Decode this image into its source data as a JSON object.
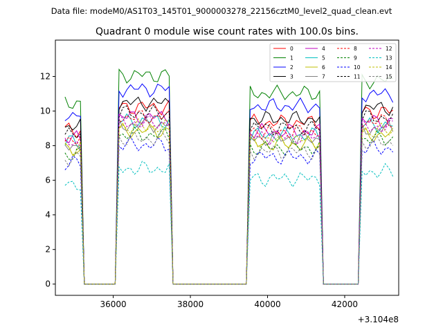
{
  "suptitle": "Data file: modeM0/AS1T03_145T01_9000003278_22156cztM0_level2_quad_clean.evt",
  "chart_data": {
    "type": "line",
    "title": "Quadrant 0 module wise count rates with 100.0s bins.",
    "xlabel": "",
    "ylabel": "",
    "x_offset_label": "+3.104e8",
    "xlim": [
      34500,
      43400
    ],
    "ylim": [
      -0.65,
      14.1
    ],
    "xticks": [
      36000,
      38000,
      40000,
      42000
    ],
    "xtick_labels": [
      "36000",
      "38000",
      "40000",
      "42000"
    ],
    "yticks": [
      0,
      2,
      4,
      6,
      8,
      10,
      12
    ],
    "ytick_labels": [
      "0",
      "2",
      "4",
      "6",
      "8",
      "10",
      "12"
    ],
    "grid": false,
    "legend_position": "top-right",
    "legend_columns": 4,
    "gti": [
      [
        34750,
        35150
      ],
      [
        36100,
        37450
      ],
      [
        39500,
        41400
      ],
      [
        42400,
        43250
      ]
    ],
    "series": [
      {
        "name": "0",
        "color": "#ff0000",
        "dash": "solid",
        "level": 8.9
      },
      {
        "name": "1",
        "color": "#008000",
        "dash": "solid",
        "level": 10.5
      },
      {
        "name": "2",
        "color": "#0000ff",
        "dash": "solid",
        "level": 9.8
      },
      {
        "name": "3",
        "color": "#000000",
        "dash": "solid",
        "level": 9.1
      },
      {
        "name": "4",
        "color": "#bf00bf",
        "dash": "solid",
        "level": 8.4
      },
      {
        "name": "5",
        "color": "#00bfbf",
        "dash": "solid",
        "level": 8.2
      },
      {
        "name": "6",
        "color": "#bfbf00",
        "dash": "solid",
        "level": 7.7
      },
      {
        "name": "7",
        "color": "#808080",
        "dash": "solid",
        "level": 8.0
      },
      {
        "name": "8",
        "color": "#ff0000",
        "dash": "dashed",
        "level": 8.4
      },
      {
        "name": "9",
        "color": "#008000",
        "dash": "dashed",
        "level": 7.5
      },
      {
        "name": "10",
        "color": "#0000ff",
        "dash": "dashed",
        "level": 7.0
      },
      {
        "name": "11",
        "color": "#000000",
        "dash": "dashed",
        "level": 8.6
      },
      {
        "name": "12",
        "color": "#bf00bf",
        "dash": "dashed",
        "level": 8.1
      },
      {
        "name": "13",
        "color": "#00bfbf",
        "dash": "dashed",
        "level": 5.8
      },
      {
        "name": "14",
        "color": "#bfbf00",
        "dash": "dashed",
        "level": 7.9
      },
      {
        "name": "15",
        "color": "#808080",
        "dash": "dashed",
        "level": 7.3
      }
    ]
  }
}
